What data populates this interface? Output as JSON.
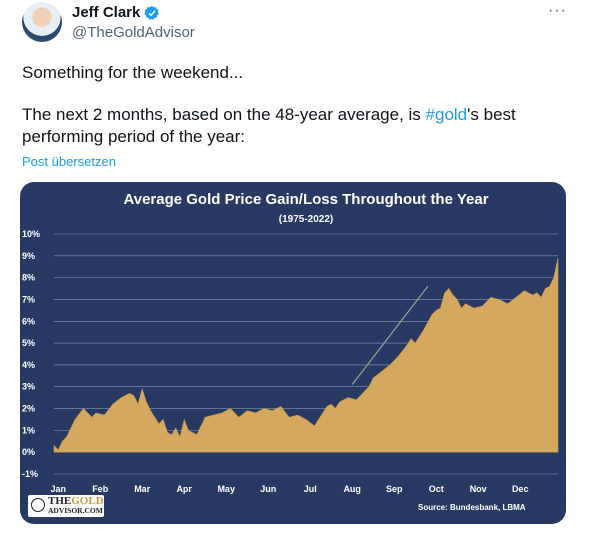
{
  "user": {
    "name": "Jeff Clark",
    "handle": "@TheGoldAdvisor"
  },
  "tweet": {
    "line1": "Something for the weekend...",
    "line2_pre": "The next 2 months, based on the 48-year average, is ",
    "hashtag": "#gold",
    "line2_post": "'s best performing period of the year:",
    "translate": "Post übersetzen"
  },
  "colors": {
    "chart_bg": "#283a63",
    "area_fill": "#d4a85f",
    "hashtag": "#1d9bf0",
    "verified": "#1d9bf0",
    "trend_line": "#7fb08a"
  },
  "logo": {
    "line1a": "THE",
    "line1b": "GOLD",
    "line2": "ADVISOR.COM"
  },
  "chart_data": {
    "type": "area",
    "title": "Average Gold Price Gain/Loss Throughout the Year",
    "subtitle": "(1975-2022)",
    "source": "Source: Bundesbank, LBMA",
    "y_ticks": [
      "10%",
      "9%",
      "8%",
      "7%",
      "6%",
      "5%",
      "4%",
      "3%",
      "2%",
      "1%",
      "0%",
      "-1%"
    ],
    "x_ticks": [
      "Jan",
      "Feb",
      "Mar",
      "Apr",
      "May",
      "Jun",
      "Jul",
      "Aug",
      "Sep",
      "Oct",
      "Nov",
      "Dec"
    ],
    "ylim": [
      -1,
      10
    ],
    "xlim": [
      0,
      12
    ],
    "grid": true,
    "x": [
      0,
      0.1,
      0.2,
      0.3,
      0.5,
      0.7,
      0.9,
      1.0,
      1.2,
      1.4,
      1.6,
      1.8,
      1.9,
      2.0,
      2.1,
      2.2,
      2.3,
      2.4,
      2.5,
      2.6,
      2.7,
      2.8,
      2.9,
      3.0,
      3.1,
      3.2,
      3.3,
      3.4,
      3.5,
      3.6,
      3.8,
      4.0,
      4.2,
      4.4,
      4.6,
      4.8,
      5.0,
      5.2,
      5.4,
      5.6,
      5.8,
      6.0,
      6.2,
      6.4,
      6.5,
      6.6,
      6.7,
      6.8,
      7.0,
      7.2,
      7.4,
      7.5,
      7.6,
      7.8,
      8.0,
      8.2,
      8.4,
      8.5,
      8.6,
      8.8,
      9.0,
      9.1,
      9.2,
      9.3,
      9.4,
      9.5,
      9.6,
      9.7,
      9.8,
      10.0,
      10.2,
      10.4,
      10.6,
      10.8,
      11.0,
      11.2,
      11.4,
      11.5,
      11.6,
      11.7,
      11.8,
      11.9,
      12.0
    ],
    "values": [
      0.3,
      0.1,
      0.5,
      0.7,
      1.5,
      2.0,
      1.6,
      1.8,
      1.7,
      2.2,
      2.5,
      2.7,
      2.6,
      2.2,
      2.9,
      2.3,
      1.9,
      1.6,
      1.3,
      1.5,
      0.9,
      0.8,
      1.1,
      0.7,
      1.5,
      1.0,
      0.9,
      0.8,
      1.2,
      1.6,
      1.7,
      1.8,
      2.0,
      1.6,
      1.9,
      1.8,
      2.0,
      1.9,
      2.1,
      1.6,
      1.7,
      1.5,
      1.2,
      1.8,
      2.1,
      2.2,
      2.0,
      2.3,
      2.5,
      2.4,
      2.8,
      3.0,
      3.4,
      3.7,
      4.0,
      4.4,
      4.9,
      5.2,
      5.0,
      5.6,
      6.3,
      6.5,
      6.6,
      7.3,
      7.5,
      7.2,
      7.0,
      6.6,
      6.8,
      6.6,
      6.7,
      7.1,
      7.0,
      6.8,
      7.1,
      7.4,
      7.2,
      7.3,
      7.1,
      7.5,
      7.6,
      8.0,
      8.9
    ],
    "trend_line": {
      "x": [
        7.1,
        8.9
      ],
      "y": [
        3.1,
        7.6
      ]
    }
  }
}
